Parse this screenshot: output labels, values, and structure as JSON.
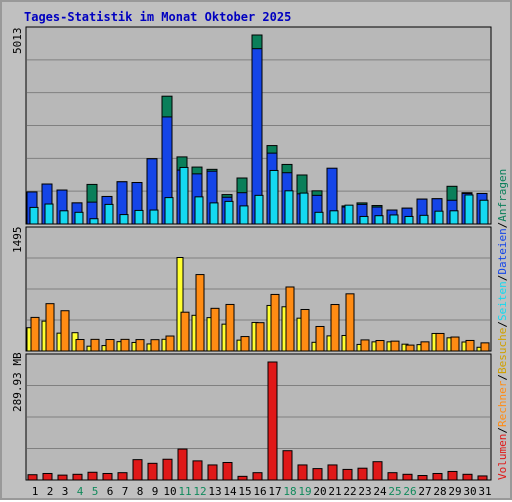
{
  "title": "Tages-Statistik im Monat Oktober 2025",
  "colors": {
    "background": "#c0c0c0",
    "panel": "#b8b8b8",
    "title": "#0000c0",
    "anfragen": "#0a7f5a",
    "dateien": "#1445e8",
    "seiten": "#14d9f0",
    "besuche": "#ffff30",
    "rechner": "#ff8c14",
    "volumen": "#e01818",
    "weekend": "#128a5c",
    "weekday": "#000000",
    "grid": "#808080"
  },
  "scales": {
    "top_max_label": "5013",
    "middle_max_label": "1495",
    "bottom_max_label": "289.93 MB"
  },
  "legend": {
    "anfragen": "Anfragen",
    "dateien": "Dateien",
    "seiten": "Seiten",
    "besuche": "Besuche",
    "rechner": "Rechner",
    "volumen": "Volumen",
    "separator": "/"
  },
  "chart_data": [
    {
      "type": "bar",
      "ymax": 5013,
      "categories": [
        "1",
        "2",
        "3",
        "4",
        "5",
        "6",
        "7",
        "8",
        "9",
        "10",
        "11",
        "12",
        "13",
        "14",
        "15",
        "16",
        "17",
        "18",
        "19",
        "20",
        "21",
        "22",
        "23",
        "24",
        "25",
        "26",
        "27",
        "28",
        "29",
        "30",
        "31"
      ],
      "weekend_days": [
        "4",
        "5",
        "11",
        "12",
        "18",
        "19",
        "25",
        "26"
      ],
      "series": [
        {
          "name": "Anfragen",
          "values": [
            850,
            1060,
            900,
            560,
            1050,
            730,
            1120,
            1100,
            1730,
            3390,
            1780,
            1510,
            1450,
            780,
            1220,
            5013,
            2080,
            1580,
            1300,
            880,
            1450,
            480,
            560,
            490,
            370,
            420,
            660,
            670,
            1000,
            830,
            810
          ]
        },
        {
          "name": "Dateien",
          "values": [
            850,
            1060,
            900,
            560,
            580,
            730,
            1120,
            1100,
            1730,
            2840,
            1430,
            1330,
            1400,
            710,
            830,
            4650,
            1880,
            1360,
            800,
            760,
            1480,
            450,
            520,
            450,
            370,
            420,
            660,
            670,
            630,
            810,
            810
          ]
        },
        {
          "name": "Seiten",
          "values": [
            440,
            530,
            350,
            310,
            140,
            520,
            250,
            360,
            370,
            700,
            1500,
            720,
            560,
            600,
            480,
            760,
            1420,
            880,
            820,
            310,
            350,
            500,
            200,
            220,
            240,
            200,
            230,
            340,
            350,
            770,
            630
          ]
        }
      ]
    },
    {
      "type": "bar",
      "ymax": 1495,
      "categories": [
        "1",
        "2",
        "3",
        "4",
        "5",
        "6",
        "7",
        "8",
        "9",
        "10",
        "11",
        "12",
        "13",
        "14",
        "15",
        "16",
        "17",
        "18",
        "19",
        "20",
        "21",
        "22",
        "23",
        "24",
        "25",
        "26",
        "27",
        "28",
        "29",
        "30",
        "31"
      ],
      "series": [
        {
          "name": "Besuche",
          "values": [
            300,
            385,
            230,
            236,
            62,
            70,
            120,
            110,
            91,
            151,
            1205,
            460,
            430,
            346,
            140,
            368,
            587,
            570,
            423,
            112,
            195,
            200,
            85,
            118,
            118,
            88,
            82,
            226,
            170,
            116,
            48
          ]
        },
        {
          "name": "Rechner",
          "values": [
            433,
            610,
            519,
            148,
            150,
            148,
            150,
            147,
            146,
            193,
            500,
            985,
            550,
            600,
            186,
            365,
            729,
            825,
            535,
            316,
            599,
            737,
            143,
            135,
            127,
            76,
            118,
            226,
            180,
            136,
            105
          ]
        }
      ]
    },
    {
      "type": "bar",
      "ymax": 289.93,
      "unit": "MB",
      "categories": [
        "1",
        "2",
        "3",
        "4",
        "5",
        "6",
        "7",
        "8",
        "9",
        "10",
        "11",
        "12",
        "13",
        "14",
        "15",
        "16",
        "17",
        "18",
        "19",
        "20",
        "21",
        "22",
        "23",
        "24",
        "25",
        "26",
        "27",
        "28",
        "29",
        "30",
        "31"
      ],
      "series": [
        {
          "name": "Volumen",
          "values": [
            13,
            16,
            12,
            14,
            19,
            16,
            18,
            50,
            41,
            51,
            76,
            47,
            37,
            43,
            9,
            18,
            289.93,
            72,
            37,
            28,
            37,
            26,
            29,
            45,
            18,
            14,
            11,
            16,
            21,
            14,
            10
          ]
        }
      ]
    }
  ]
}
